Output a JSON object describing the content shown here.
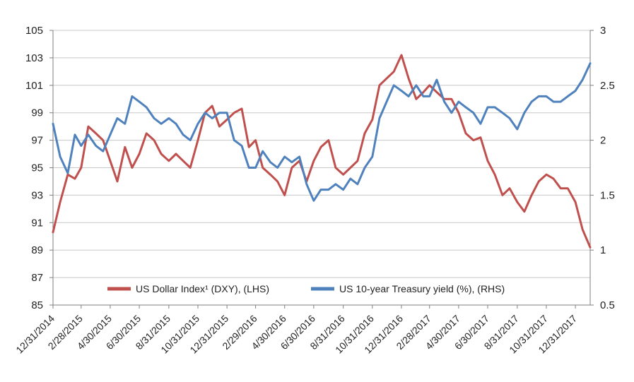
{
  "chart_data": {
    "type": "line",
    "title": "",
    "xlabel": "",
    "ylabel_left": "",
    "ylabel_right": "",
    "x_ticks": [
      "12/31/2014",
      "2/28/2015",
      "4/30/2015",
      "6/30/2015",
      "8/31/2015",
      "10/31/2015",
      "12/31/2015",
      "2/29/2016",
      "4/30/2016",
      "6/30/2016",
      "8/31/2016",
      "10/31/2016",
      "12/31/2016",
      "2/28/2017",
      "4/30/2017",
      "6/30/2017",
      "8/31/2017",
      "10/31/2017",
      "12/31/2017"
    ],
    "x_range": [
      "12/31/2014",
      "1/31/2018"
    ],
    "y_left": {
      "min": 85,
      "max": 105,
      "ticks": [
        "85",
        "87",
        "89",
        "91",
        "93",
        "95",
        "97",
        "99",
        "101",
        "103",
        "105"
      ]
    },
    "y_right": {
      "min": 0.5,
      "max": 3,
      "ticks": [
        "0.5",
        "1",
        "1.5",
        "2",
        "2.5",
        "3"
      ]
    },
    "grid": "horizontal",
    "legend_position": "bottom-center",
    "colors": {
      "dxy": "#c0504d",
      "yield": "#4f81bd",
      "grid": "#c8c8c8",
      "axis": "#7f7f7f"
    },
    "series": [
      {
        "name": "US Dollar Index¹ (DXY), (LHS)",
        "axis": "left",
        "x": [
          "12/31/2014",
          "1/15/2015",
          "1/31/2015",
          "2/15/2015",
          "2/28/2015",
          "3/15/2015",
          "3/31/2015",
          "4/15/2015",
          "4/30/2015",
          "5/15/2015",
          "5/31/2015",
          "6/15/2015",
          "6/30/2015",
          "7/15/2015",
          "7/31/2015",
          "8/15/2015",
          "8/31/2015",
          "9/15/2015",
          "9/30/2015",
          "10/15/2015",
          "10/31/2015",
          "11/15/2015",
          "11/30/2015",
          "12/15/2015",
          "12/31/2015",
          "1/15/2016",
          "1/31/2016",
          "2/15/2016",
          "2/29/2016",
          "3/15/2016",
          "3/31/2016",
          "4/15/2016",
          "4/30/2016",
          "5/15/2016",
          "5/31/2016",
          "6/15/2016",
          "6/30/2016",
          "7/15/2016",
          "7/31/2016",
          "8/15/2016",
          "8/31/2016",
          "9/15/2016",
          "9/30/2016",
          "10/15/2016",
          "10/31/2016",
          "11/15/2016",
          "11/30/2016",
          "12/15/2016",
          "12/31/2016",
          "1/15/2017",
          "1/31/2017",
          "2/15/2017",
          "2/28/2017",
          "3/15/2017",
          "3/31/2017",
          "4/15/2017",
          "4/30/2017",
          "5/15/2017",
          "5/31/2017",
          "6/15/2017",
          "6/30/2017",
          "7/15/2017",
          "7/31/2017",
          "8/15/2017",
          "8/31/2017",
          "9/15/2017",
          "9/30/2017",
          "10/15/2017",
          "10/31/2017",
          "11/15/2017",
          "11/30/2017",
          "12/15/2017",
          "12/31/2017",
          "1/15/2018",
          "1/31/2018"
        ],
        "values": [
          90.3,
          92.5,
          94.5,
          94.2,
          95.0,
          98.0,
          97.5,
          97.0,
          95.5,
          94.0,
          96.5,
          95.0,
          96.0,
          97.5,
          97.0,
          96.0,
          95.5,
          96.0,
          95.5,
          95.0,
          97.0,
          99.0,
          99.5,
          98.0,
          98.5,
          99.0,
          99.3,
          96.5,
          97.0,
          95.0,
          94.5,
          94.0,
          93.0,
          95.0,
          95.5,
          94.0,
          95.5,
          96.5,
          97.0,
          95.0,
          94.5,
          95.0,
          95.5,
          97.5,
          98.5,
          101.0,
          101.5,
          102.0,
          103.2,
          101.5,
          100.0,
          100.5,
          101.0,
          100.5,
          100.0,
          100.0,
          99.0,
          97.5,
          97.0,
          97.2,
          95.5,
          94.5,
          93.0,
          93.5,
          92.5,
          91.8,
          93.0,
          94.0,
          94.5,
          94.2,
          93.5,
          93.5,
          92.5,
          90.5,
          89.2
        ]
      },
      {
        "name": "US 10-year Treasury yield (%), (RHS)",
        "axis": "right",
        "x": [
          "12/31/2014",
          "1/15/2015",
          "1/31/2015",
          "2/15/2015",
          "2/28/2015",
          "3/15/2015",
          "3/31/2015",
          "4/15/2015",
          "4/30/2015",
          "5/15/2015",
          "5/31/2015",
          "6/15/2015",
          "6/30/2015",
          "7/15/2015",
          "7/31/2015",
          "8/15/2015",
          "8/31/2015",
          "9/15/2015",
          "9/30/2015",
          "10/15/2015",
          "10/31/2015",
          "11/15/2015",
          "11/30/2015",
          "12/15/2015",
          "12/31/2015",
          "1/15/2016",
          "1/31/2016",
          "2/15/2016",
          "2/29/2016",
          "3/15/2016",
          "3/31/2016",
          "4/15/2016",
          "4/30/2016",
          "5/15/2016",
          "5/31/2016",
          "6/15/2016",
          "6/30/2016",
          "7/15/2016",
          "7/31/2016",
          "8/15/2016",
          "8/31/2016",
          "9/15/2016",
          "9/30/2016",
          "10/15/2016",
          "10/31/2016",
          "11/15/2016",
          "11/30/2016",
          "12/15/2016",
          "12/31/2016",
          "1/15/2017",
          "1/31/2017",
          "2/15/2017",
          "2/28/2017",
          "3/15/2017",
          "3/31/2017",
          "4/15/2017",
          "4/30/2017",
          "5/15/2017",
          "5/31/2017",
          "6/15/2017",
          "6/30/2017",
          "7/15/2017",
          "7/31/2017",
          "8/15/2017",
          "8/31/2017",
          "9/15/2017",
          "9/30/2017",
          "10/15/2017",
          "10/31/2017",
          "11/15/2017",
          "11/30/2017",
          "12/15/2017",
          "12/31/2017",
          "1/15/2018",
          "1/31/2018"
        ],
        "values": [
          2.15,
          1.85,
          1.7,
          2.05,
          1.95,
          2.05,
          1.95,
          1.9,
          2.05,
          2.2,
          2.15,
          2.4,
          2.35,
          2.3,
          2.2,
          2.15,
          2.2,
          2.15,
          2.05,
          2.0,
          2.15,
          2.25,
          2.2,
          2.25,
          2.25,
          2.0,
          1.95,
          1.75,
          1.75,
          1.9,
          1.8,
          1.75,
          1.85,
          1.8,
          1.85,
          1.6,
          1.45,
          1.55,
          1.55,
          1.6,
          1.55,
          1.65,
          1.6,
          1.75,
          1.85,
          2.2,
          2.35,
          2.5,
          2.45,
          2.4,
          2.5,
          2.4,
          2.4,
          2.55,
          2.35,
          2.25,
          2.35,
          2.3,
          2.25,
          2.15,
          2.3,
          2.3,
          2.25,
          2.2,
          2.1,
          2.25,
          2.35,
          2.4,
          2.4,
          2.35,
          2.35,
          2.4,
          2.45,
          2.55,
          2.7
        ]
      }
    ]
  }
}
